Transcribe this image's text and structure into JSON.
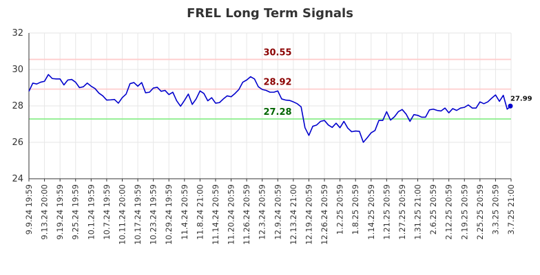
{
  "chart_data": {
    "type": "line",
    "title": "FREL Long Term Signals",
    "xlabel": "",
    "ylabel": "",
    "ylim": [
      24,
      32
    ],
    "yticks": [
      "24",
      "26",
      "28",
      "30",
      "32"
    ],
    "grid": true,
    "x_tick_labels": [
      "9.9.24 19:59",
      "9.13.24 20:00",
      "9.19.24 19:59",
      "9.25.24 19:59",
      "10.1.24 19:59",
      "10.7.24 19:59",
      "10.11.24 20:00",
      "10.17.24 19:59",
      "10.23.24 19:59",
      "10.29.24 19:59",
      "11.4.24 20:59",
      "11.8.24 21:00",
      "11.14.24 20:59",
      "11.20.24 20:59",
      "11.26.24 20:59",
      "12.3.24 20:59",
      "12.9.24 20:59",
      "12.13.24 21:00",
      "12.19.24 20:59",
      "12.26.24 20:59",
      "1.2.25 20:59",
      "1.8.25 20:59",
      "1.14.25 20:59",
      "1.21.25 20:59",
      "1.27.25 20:59",
      "1.31.25 21:00",
      "2.6.25 20:59",
      "2.12.25 20:59",
      "2.19.25 20:59",
      "2.25.25 20:59",
      "3.3.25 20:59",
      "3.7.25 21:00"
    ],
    "levels": [
      {
        "value": 30.55,
        "label": "30.55",
        "line_color": "#ffcccc",
        "text_color": "#8b0000"
      },
      {
        "value": 28.92,
        "label": "28.92",
        "line_color": "#ffcccc",
        "text_color": "#8b0000"
      },
      {
        "value": 27.28,
        "label": "27.28",
        "line_color": "#90ee90",
        "text_color": "#006400"
      }
    ],
    "series": [
      {
        "color": "#0000cc",
        "values": [
          28.8,
          29.25,
          29.2,
          29.3,
          29.35,
          29.72,
          29.5,
          29.48,
          29.48,
          29.15,
          29.42,
          29.45,
          29.3,
          29.0,
          29.05,
          29.25,
          29.08,
          28.95,
          28.7,
          28.55,
          28.32,
          28.33,
          28.35,
          28.15,
          28.45,
          28.65,
          29.22,
          29.28,
          29.08,
          29.28,
          28.72,
          28.75,
          28.98,
          29.02,
          28.8,
          28.85,
          28.62,
          28.75,
          28.28,
          27.98,
          28.3,
          28.65,
          28.08,
          28.38,
          28.82,
          28.68,
          28.28,
          28.45,
          28.15,
          28.18,
          28.38,
          28.55,
          28.5,
          28.68,
          28.9,
          29.3,
          29.42,
          29.6,
          29.48,
          29.05,
          28.9,
          28.85,
          28.75,
          28.75,
          28.82,
          28.38,
          28.32,
          28.3,
          28.22,
          28.12,
          27.95,
          26.8,
          26.38,
          26.88,
          26.95,
          27.15,
          27.2,
          26.95,
          26.82,
          27.05,
          26.8,
          27.15,
          26.78,
          26.58,
          26.62,
          26.6,
          26.0,
          26.25,
          26.52,
          26.65,
          27.2,
          27.2,
          27.68,
          27.22,
          27.4,
          27.68,
          27.8,
          27.55,
          27.15,
          27.52,
          27.48,
          27.38,
          27.38,
          27.78,
          27.82,
          27.75,
          27.72,
          27.88,
          27.62,
          27.85,
          27.75,
          27.88,
          27.92,
          28.05,
          27.88,
          27.88,
          28.22,
          28.12,
          28.22,
          28.42,
          28.6,
          28.25,
          28.58,
          27.82,
          27.99
        ]
      }
    ],
    "last_value_label": "27.99"
  }
}
